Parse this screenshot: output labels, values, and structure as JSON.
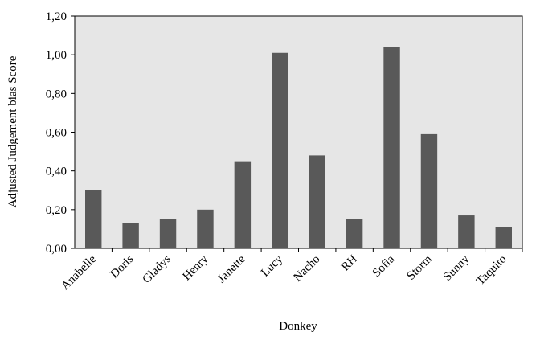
{
  "chart_data": {
    "type": "bar",
    "x_label": "Donkey",
    "y_label": "Adjusted Judgement bias Score",
    "categories": [
      "Anabelle",
      "Doris",
      "Gladys",
      "Henry",
      "Janette",
      "Lucy",
      "Nacho",
      "RH",
      "Sofia",
      "Storm",
      "Sunny",
      "Taquito"
    ],
    "values": [
      0.3,
      0.13,
      0.15,
      0.2,
      0.45,
      1.01,
      0.48,
      0.15,
      1.04,
      0.59,
      0.17,
      0.11
    ],
    "color": "#595959",
    "background": "#e6e6e6",
    "ylim": [
      0,
      1.2
    ],
    "yticks": [
      {
        "value": 0,
        "label": "0,00"
      },
      {
        "value": 0.2,
        "label": "0,20"
      },
      {
        "value": 0.4,
        "label": "0,40"
      },
      {
        "value": 0.6,
        "label": "0,60"
      },
      {
        "value": 0.8,
        "label": "0,80"
      },
      {
        "value": 1.0,
        "label": "1,00"
      },
      {
        "value": 1.2,
        "label": "1,20"
      }
    ],
    "grid": false
  }
}
